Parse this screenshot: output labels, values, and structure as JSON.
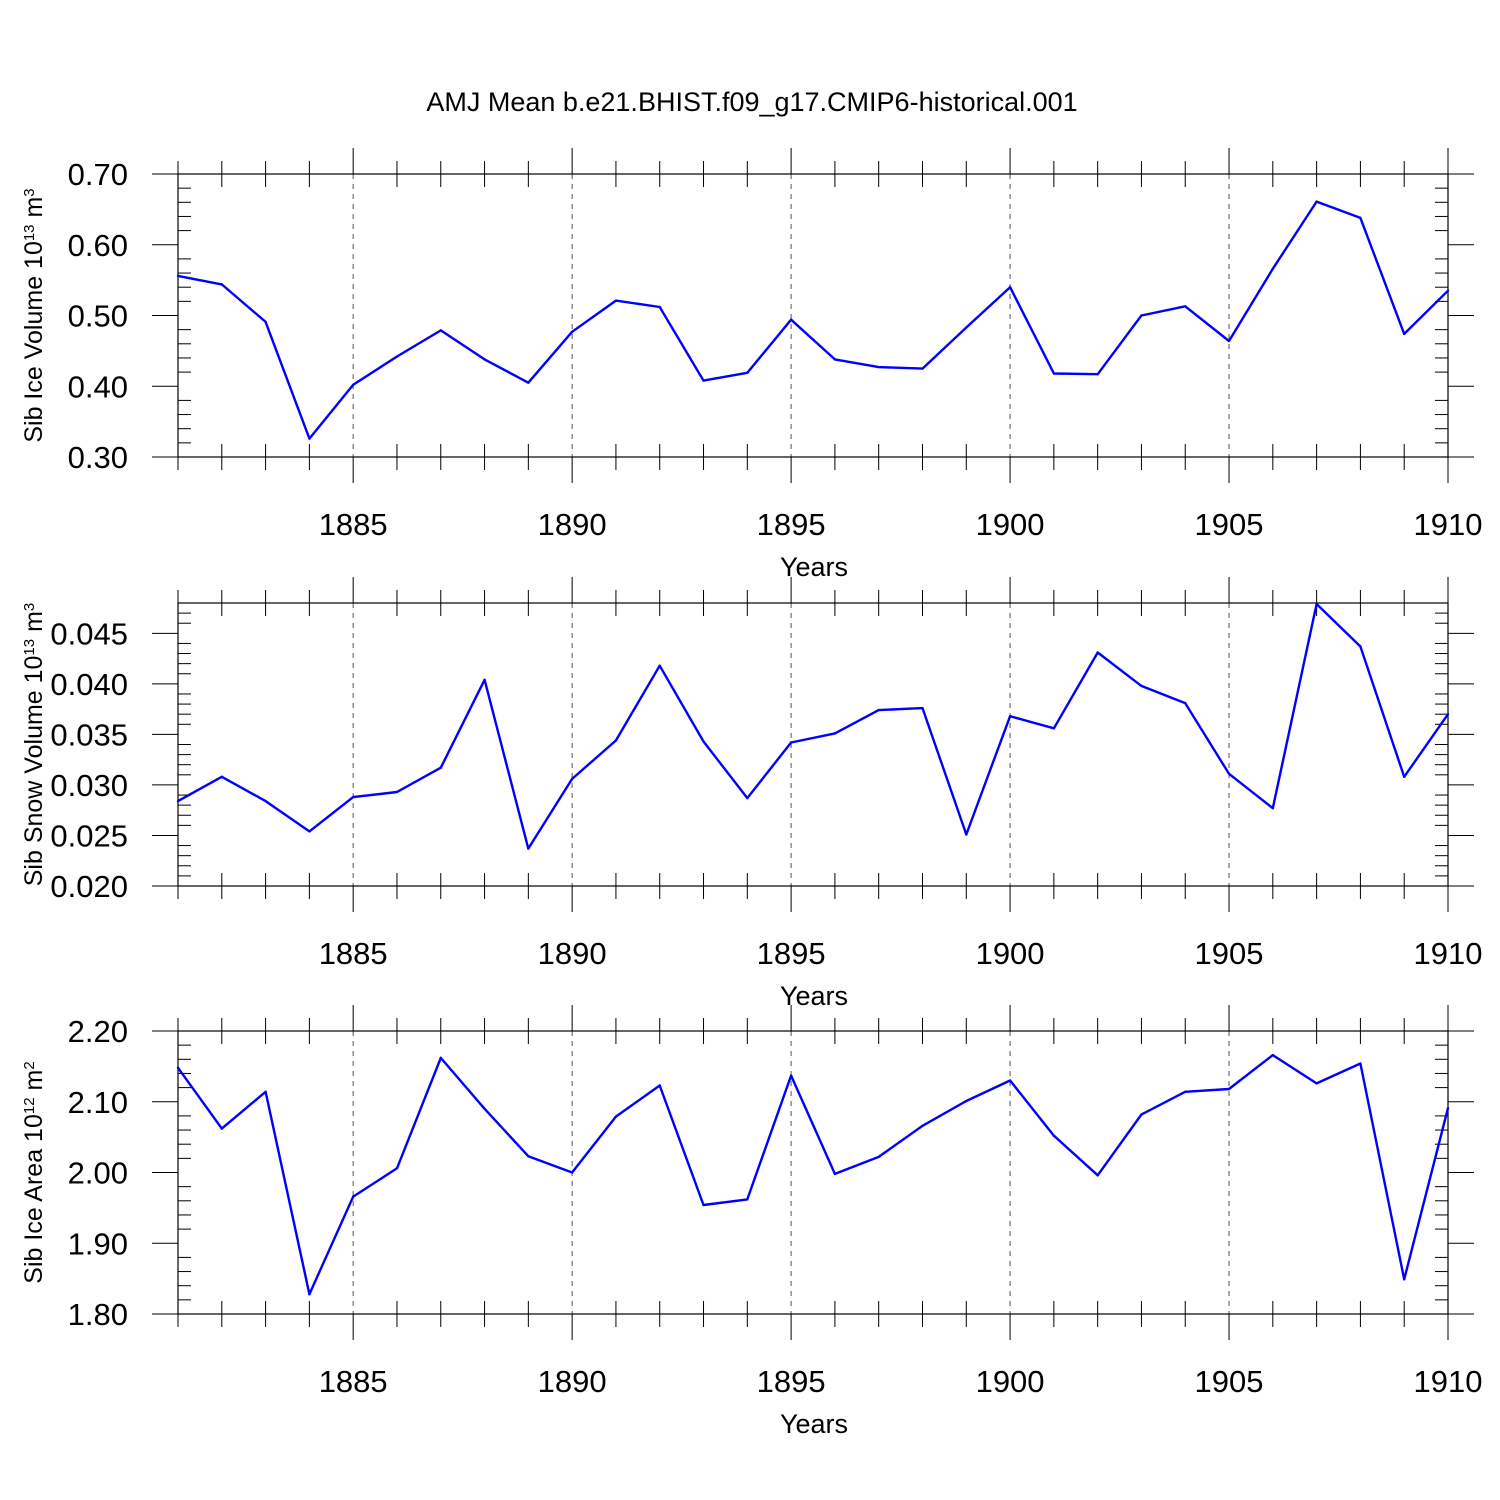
{
  "title": "AMJ Mean b.e21.BHIST.f09_g17.CMIP6-historical.001",
  "line_color": "#0000ff",
  "chart_data": [
    {
      "type": "line",
      "title": "AMJ Mean b.e21.BHIST.f09_g17.CMIP6-historical.001",
      "xlabel": "Years",
      "ylabel_main": "Sib Ice Volume 10",
      "ylabel_exp": "13",
      "ylabel_unit": " m",
      "ylabel_unit_exp": "3",
      "xlim": [
        1881,
        1910
      ],
      "ylim": [
        0.3,
        0.7
      ],
      "xticks": [
        1885,
        1890,
        1895,
        1900,
        1905,
        1910
      ],
      "xtick_labels": [
        "1885",
        "1890",
        "1895",
        "1900",
        "1905",
        "1910"
      ],
      "yticks": [
        0.3,
        0.4,
        0.5,
        0.6,
        0.7
      ],
      "ytick_labels": [
        "0.30",
        "0.40",
        "0.50",
        "0.60",
        "0.70"
      ],
      "ymin_step": 0.02,
      "series": [
        {
          "name": "Sib Ice Volume",
          "x": [
            1881,
            1882,
            1883,
            1884,
            1885,
            1886,
            1887,
            1888,
            1889,
            1890,
            1891,
            1892,
            1893,
            1894,
            1895,
            1896,
            1897,
            1898,
            1899,
            1900,
            1901,
            1902,
            1903,
            1904,
            1905,
            1906,
            1907,
            1908,
            1909,
            1910
          ],
          "values": [
            0.556,
            0.544,
            0.491,
            0.326,
            0.402,
            0.442,
            0.479,
            0.438,
            0.405,
            0.477,
            0.521,
            0.512,
            0.408,
            0.419,
            0.494,
            0.438,
            0.427,
            0.425,
            0.483,
            0.54,
            0.418,
            0.417,
            0.5,
            0.513,
            0.464,
            0.566,
            0.661,
            0.638,
            0.474,
            0.535
          ]
        }
      ]
    },
    {
      "type": "line",
      "xlabel": "Years",
      "ylabel_main": "Sib Snow Volume 10",
      "ylabel_exp": "13",
      "ylabel_unit": " m",
      "ylabel_unit_exp": "3",
      "xlim": [
        1881,
        1910
      ],
      "ylim": [
        0.02,
        0.048
      ],
      "xticks": [
        1885,
        1890,
        1895,
        1900,
        1905,
        1910
      ],
      "xtick_labels": [
        "1885",
        "1890",
        "1895",
        "1900",
        "1905",
        "1910"
      ],
      "yticks": [
        0.02,
        0.025,
        0.03,
        0.035,
        0.04,
        0.045
      ],
      "ytick_labels": [
        "0.020",
        "0.025",
        "0.030",
        "0.035",
        "0.040",
        "0.045"
      ],
      "ymin_step": 0.001,
      "series": [
        {
          "name": "Sib Snow Volume",
          "x": [
            1881,
            1882,
            1883,
            1884,
            1885,
            1886,
            1887,
            1888,
            1889,
            1890,
            1891,
            1892,
            1893,
            1894,
            1895,
            1896,
            1897,
            1898,
            1899,
            1900,
            1901,
            1902,
            1903,
            1904,
            1905,
            1906,
            1907,
            1908,
            1909,
            1910
          ],
          "values": [
            0.0284,
            0.0308,
            0.0284,
            0.0254,
            0.0288,
            0.0293,
            0.0317,
            0.0404,
            0.0237,
            0.0306,
            0.0344,
            0.0418,
            0.0343,
            0.0287,
            0.0342,
            0.0351,
            0.0374,
            0.0376,
            0.0251,
            0.0368,
            0.0356,
            0.0431,
            0.0398,
            0.0381,
            0.0311,
            0.0277,
            0.0479,
            0.0437,
            0.0308,
            0.037
          ]
        }
      ]
    },
    {
      "type": "line",
      "xlabel": "Years",
      "ylabel_main": "Sib Ice Area 10",
      "ylabel_exp": "12",
      "ylabel_unit": " m",
      "ylabel_unit_exp": "2",
      "xlim": [
        1881,
        1910
      ],
      "ylim": [
        1.8,
        2.2
      ],
      "xticks": [
        1885,
        1890,
        1895,
        1900,
        1905,
        1910
      ],
      "xtick_labels": [
        "1885",
        "1890",
        "1895",
        "1900",
        "1905",
        "1910"
      ],
      "yticks": [
        1.8,
        1.9,
        2.0,
        2.1,
        2.2
      ],
      "ytick_labels": [
        "1.80",
        "1.90",
        "2.00",
        "2.10",
        "2.20"
      ],
      "ymin_step": 0.02,
      "series": [
        {
          "name": "Sib Ice Area",
          "x": [
            1881,
            1882,
            1883,
            1884,
            1885,
            1886,
            1887,
            1888,
            1889,
            1890,
            1891,
            1892,
            1893,
            1894,
            1895,
            1896,
            1897,
            1898,
            1899,
            1900,
            1901,
            1902,
            1903,
            1904,
            1905,
            1906,
            1907,
            1908,
            1909,
            1910
          ],
          "values": [
            2.148,
            2.062,
            2.114,
            1.828,
            1.966,
            2.006,
            2.162,
            2.09,
            2.023,
            2.0,
            2.079,
            2.123,
            1.954,
            1.962,
            2.137,
            1.998,
            2.022,
            2.066,
            2.101,
            2.13,
            2.052,
            1.996,
            2.082,
            2.114,
            2.118,
            2.166,
            2.126,
            2.154,
            1.849,
            2.091
          ]
        }
      ]
    }
  ]
}
